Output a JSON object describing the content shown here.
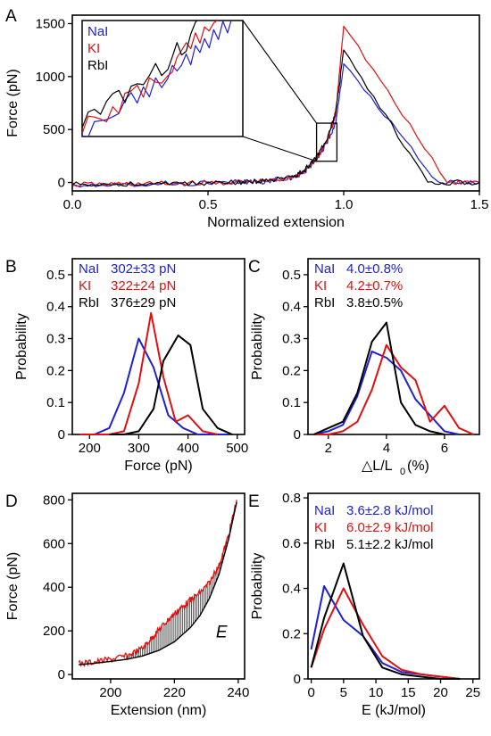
{
  "colors": {
    "NaI": "#1f1fd6",
    "KI": "#e01010",
    "RbI": "#000000"
  },
  "chart_data": [
    {
      "panel": "A",
      "type": "line",
      "xlabel": "Normalized extension",
      "ylabel": "Force (pN)",
      "xlim": [
        0,
        1.5
      ],
      "ylim": [
        -80,
        1580
      ],
      "xticks": [
        0,
        0.5,
        1,
        1.5
      ],
      "xtick_labels": [
        "0.0",
        "0.5",
        "1.0",
        "1.5"
      ],
      "yticks": [
        0,
        500,
        1000,
        1500
      ],
      "ytick_labels": [
        "0",
        "500",
        "1000",
        "1500"
      ],
      "legend": [
        "NaI",
        "KI",
        "RbI"
      ],
      "inset": {
        "xlim": [
          0.9,
          0.975
        ],
        "ylim": [
          200,
          560
        ]
      },
      "series": [
        {
          "name": "NaI",
          "color": "#1f1fd6",
          "x": [
            0,
            0.2,
            0.4,
            0.6,
            0.7,
            0.8,
            0.85,
            0.9,
            0.94,
            0.97,
            1.0,
            1.35,
            1.5
          ],
          "y": [
            -20,
            -15,
            -10,
            0,
            10,
            40,
            90,
            210,
            380,
            560,
            1110,
            0,
            0
          ]
        },
        {
          "name": "KI",
          "color": "#e01010",
          "x": [
            0,
            0.2,
            0.4,
            0.6,
            0.7,
            0.8,
            0.85,
            0.9,
            0.94,
            0.97,
            1.0,
            1.38,
            1.5
          ],
          "y": [
            -20,
            -15,
            -10,
            0,
            10,
            40,
            90,
            220,
            400,
            620,
            1490,
            0,
            0
          ]
        },
        {
          "name": "RbI",
          "color": "#000000",
          "x": [
            0,
            0.2,
            0.4,
            0.6,
            0.7,
            0.8,
            0.85,
            0.9,
            0.94,
            0.97,
            1.0,
            1.31,
            1.5
          ],
          "y": [
            -20,
            -15,
            -10,
            0,
            10,
            40,
            100,
            240,
            430,
            650,
            1240,
            0,
            0
          ]
        }
      ]
    },
    {
      "panel": "B",
      "type": "line",
      "xlabel": "Force (pN)",
      "ylabel": "Probability",
      "xlim": [
        165,
        515
      ],
      "ylim": [
        0,
        0.55
      ],
      "xticks": [
        200,
        300,
        400,
        500
      ],
      "yticks": [
        0,
        0.1,
        0.2,
        0.3,
        0.4,
        0.5
      ],
      "legend": [
        {
          "name": "NaI",
          "stat": "302±33 pN"
        },
        {
          "name": "KI",
          "stat": "322±24 pN"
        },
        {
          "name": "RbI",
          "stat": "376±29 pN"
        }
      ],
      "series": [
        {
          "name": "NaI",
          "color": "#1f1fd6",
          "x": [
            180,
            210,
            240,
            270,
            300,
            330,
            360,
            390,
            420,
            450,
            480
          ],
          "y": [
            0,
            0,
            0.02,
            0.13,
            0.3,
            0.21,
            0.06,
            0.02,
            0,
            0,
            0
          ]
        },
        {
          "name": "KI",
          "color": "#e01010",
          "x": [
            180,
            210,
            240,
            270,
            300,
            325,
            350,
            375,
            400,
            430,
            460
          ],
          "y": [
            0,
            0,
            0,
            0.01,
            0.16,
            0.38,
            0.18,
            0.04,
            0.06,
            0.01,
            0
          ]
        },
        {
          "name": "RbI",
          "color": "#000000",
          "x": [
            240,
            270,
            300,
            330,
            350,
            380,
            405,
            430,
            460,
            490
          ],
          "y": [
            0,
            0,
            0.01,
            0.08,
            0.23,
            0.31,
            0.28,
            0.08,
            0.02,
            0
          ]
        }
      ]
    },
    {
      "panel": "C",
      "type": "line",
      "xlabel_main": "△L/L",
      "xlabel_sub": "0",
      "xlabel_suffix": "(%)",
      "ylabel": "Probability",
      "xlim": [
        1.3,
        7.2
      ],
      "ylim": [
        0,
        0.55
      ],
      "xticks": [
        2,
        4,
        6
      ],
      "yticks": [
        0,
        0.1,
        0.2,
        0.3,
        0.4,
        0.5
      ],
      "legend": [
        {
          "name": "NaI",
          "stat": "4.0±0.8%"
        },
        {
          "name": "KI",
          "stat": "4.2±0.7%"
        },
        {
          "name": "RbI",
          "stat": "3.8±0.5%"
        }
      ],
      "series": [
        {
          "name": "NaI",
          "color": "#1f1fd6",
          "x": [
            1.5,
            2.0,
            2.5,
            3.0,
            3.5,
            4.0,
            4.5,
            5.0,
            5.5,
            6.0,
            6.5
          ],
          "y": [
            0,
            0.01,
            0.03,
            0.12,
            0.26,
            0.24,
            0.2,
            0.11,
            0.06,
            0.01,
            0
          ]
        },
        {
          "name": "KI",
          "color": "#e01010",
          "x": [
            1.5,
            2.0,
            2.5,
            3.0,
            3.5,
            4.0,
            4.5,
            5.0,
            5.5,
            6.0,
            6.5,
            7.0
          ],
          "y": [
            0,
            0,
            0.01,
            0.04,
            0.14,
            0.28,
            0.21,
            0.17,
            0.04,
            0.09,
            0.02,
            0
          ]
        },
        {
          "name": "RbI",
          "color": "#000000",
          "x": [
            1.5,
            2.0,
            2.5,
            3.0,
            3.5,
            4.0,
            4.5,
            5.0,
            5.5,
            6.0
          ],
          "y": [
            0,
            0.02,
            0.04,
            0.13,
            0.29,
            0.35,
            0.1,
            0.03,
            0.01,
            0
          ]
        }
      ]
    },
    {
      "panel": "D",
      "type": "line",
      "xlabel": "Extension (nm)",
      "ylabel": "Force (pN)",
      "xlim": [
        188,
        242
      ],
      "ylim": [
        -20,
        830
      ],
      "xticks": [
        200,
        220,
        240
      ],
      "yticks": [
        0,
        200,
        400,
        600,
        800
      ],
      "annotation": "E",
      "series": [
        {
          "name": "fit",
          "color": "#000000",
          "x": [
            190,
            195,
            200,
            205,
            210,
            215,
            220,
            225,
            228,
            231,
            234,
            237,
            239.5
          ],
          "y": [
            45,
            52,
            60,
            70,
            85,
            110,
            150,
            215,
            270,
            350,
            460,
            620,
            790
          ]
        },
        {
          "name": "data",
          "color": "#e01010",
          "x": [
            190,
            195,
            200,
            205,
            210,
            213,
            216,
            219,
            222,
            225,
            228,
            231,
            234,
            237,
            239.5
          ],
          "y": [
            50,
            58,
            70,
            85,
            120,
            170,
            220,
            265,
            305,
            340,
            375,
            420,
            500,
            640,
            800
          ]
        }
      ]
    },
    {
      "panel": "E",
      "type": "line",
      "xlabel": "E (kJ/mol)",
      "ylabel": "Probability",
      "xlim": [
        -0.5,
        26
      ],
      "ylim": [
        0,
        0.82
      ],
      "xticks": [
        0,
        5,
        10,
        15,
        20,
        25
      ],
      "yticks": [
        0,
        0.2,
        0.4,
        0.6,
        0.8
      ],
      "legend": [
        {
          "name": "NaI",
          "stat": "3.6±2.8 kJ/mol"
        },
        {
          "name": "KI",
          "stat": "6.0±2.9 kJ/mol"
        },
        {
          "name": "RbI",
          "stat": "5.1±2.2 kJ/mol"
        }
      ],
      "series": [
        {
          "name": "NaI",
          "color": "#1f1fd6",
          "x": [
            0,
            2,
            5,
            8,
            11,
            14,
            17,
            20,
            23
          ],
          "y": [
            0.13,
            0.41,
            0.26,
            0.19,
            0.07,
            0.03,
            0.02,
            0.01,
            0
          ]
        },
        {
          "name": "KI",
          "color": "#e01010",
          "x": [
            0,
            2,
            5,
            8,
            11,
            14,
            17,
            20,
            23
          ],
          "y": [
            0.05,
            0.22,
            0.4,
            0.24,
            0.1,
            0.04,
            0.02,
            0.01,
            0
          ]
        },
        {
          "name": "RbI",
          "color": "#000000",
          "x": [
            0,
            2,
            5,
            8,
            11,
            14,
            17,
            20,
            23
          ],
          "y": [
            0.05,
            0.27,
            0.51,
            0.19,
            0.05,
            0.02,
            0.01,
            0,
            0
          ]
        }
      ]
    }
  ]
}
